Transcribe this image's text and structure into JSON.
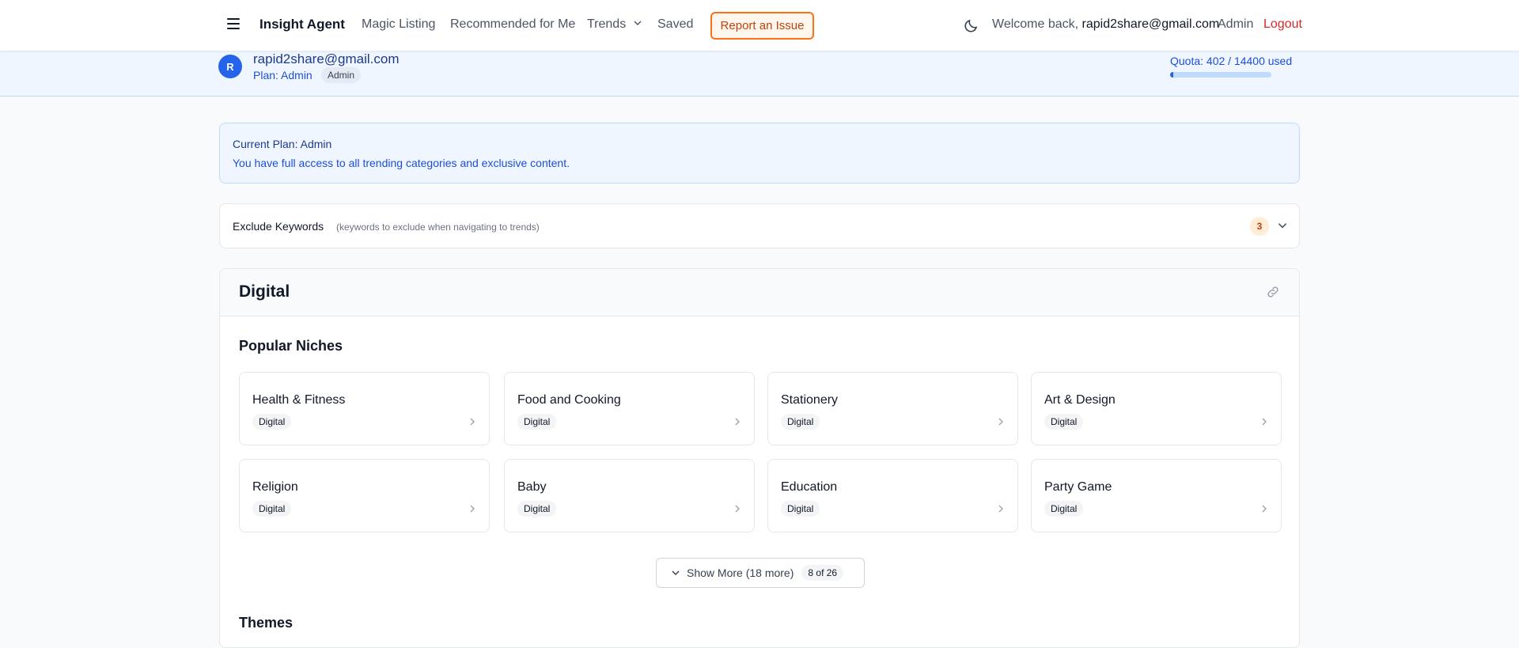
{
  "nav": {
    "brand": "Insight Agent",
    "items": [
      "Magic Listing",
      "Recommended for Me",
      "Trends",
      "Saved"
    ],
    "report": "Report an Issue",
    "welcome": "Welcome back,",
    "user": "rapid2share@gmail.com",
    "role": "Admin",
    "logout": "Logout"
  },
  "banner": {
    "avatar": "R",
    "email": "rapid2share@gmail.com",
    "plan": "Plan: Admin",
    "badge": "Admin",
    "quota": "Quota: 402 / 14400 used",
    "quota_used": 402,
    "quota_total": 14400
  },
  "plan_box": {
    "title": "Current Plan: Admin",
    "text": "You have full access to all trending categories and exclusive content."
  },
  "exclude": {
    "title": "Exclude Keywords",
    "subtitle": "(keywords to exclude when navigating to trends)",
    "count": "3"
  },
  "section": {
    "title": "Digital",
    "popular": "Popular Niches",
    "niches": [
      {
        "name": "Health & Fitness",
        "tag": "Digital"
      },
      {
        "name": "Food and Cooking",
        "tag": "Digital"
      },
      {
        "name": "Stationery",
        "tag": "Digital"
      },
      {
        "name": "Art & Design",
        "tag": "Digital"
      },
      {
        "name": "Religion",
        "tag": "Digital"
      },
      {
        "name": "Baby",
        "tag": "Digital"
      },
      {
        "name": "Education",
        "tag": "Digital"
      },
      {
        "name": "Party Game",
        "tag": "Digital"
      }
    ],
    "show_more": "Show More (18 more)",
    "page": "8 of 26",
    "themes": "Themes"
  },
  "colors": {
    "accent": "#2563eb",
    "report": "#f97316",
    "logout": "#dc2626"
  }
}
